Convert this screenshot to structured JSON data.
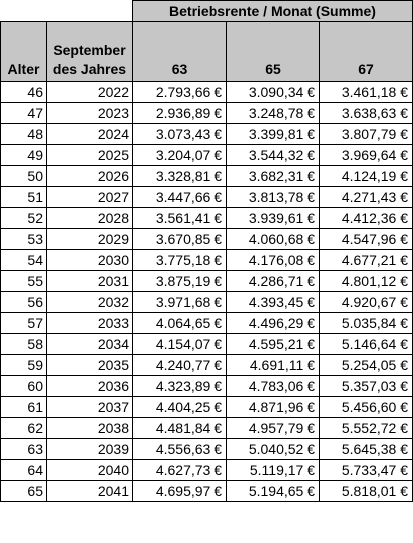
{
  "table": {
    "group_header": "Betriebsrente / Monat (Summe)",
    "headers": {
      "alter": "Alter",
      "september": "September des Jahres",
      "col_63": "63",
      "col_65": "65",
      "col_67": "67"
    },
    "rows": [
      {
        "alter": "46",
        "jahr": "2022",
        "v63": "2.793,66 €",
        "v65": "3.090,34 €",
        "v67": "3.461,18 €"
      },
      {
        "alter": "47",
        "jahr": "2023",
        "v63": "2.936,89 €",
        "v65": "3.248,78 €",
        "v67": "3.638,63 €"
      },
      {
        "alter": "48",
        "jahr": "2024",
        "v63": "3.073,43 €",
        "v65": "3.399,81 €",
        "v67": "3.807,79 €"
      },
      {
        "alter": "49",
        "jahr": "2025",
        "v63": "3.204,07 €",
        "v65": "3.544,32 €",
        "v67": "3.969,64 €"
      },
      {
        "alter": "50",
        "jahr": "2026",
        "v63": "3.328,81 €",
        "v65": "3.682,31 €",
        "v67": "4.124,19 €"
      },
      {
        "alter": "51",
        "jahr": "2027",
        "v63": "3.447,66 €",
        "v65": "3.813,78 €",
        "v67": "4.271,43 €"
      },
      {
        "alter": "52",
        "jahr": "2028",
        "v63": "3.561,41 €",
        "v65": "3.939,61 €",
        "v67": "4.412,36 €"
      },
      {
        "alter": "53",
        "jahr": "2029",
        "v63": "3.670,85 €",
        "v65": "4.060,68 €",
        "v67": "4.547,96 €"
      },
      {
        "alter": "54",
        "jahr": "2030",
        "v63": "3.775,18 €",
        "v65": "4.176,08 €",
        "v67": "4.677,21 €"
      },
      {
        "alter": "55",
        "jahr": "2031",
        "v63": "3.875,19 €",
        "v65": "4.286,71 €",
        "v67": "4.801,12 €"
      },
      {
        "alter": "56",
        "jahr": "2032",
        "v63": "3.971,68 €",
        "v65": "4.393,45 €",
        "v67": "4.920,67 €"
      },
      {
        "alter": "57",
        "jahr": "2033",
        "v63": "4.064,65 €",
        "v65": "4.496,29 €",
        "v67": "5.035,84 €"
      },
      {
        "alter": "58",
        "jahr": "2034",
        "v63": "4.154,07 €",
        "v65": "4.595,21 €",
        "v67": "5.146,64 €"
      },
      {
        "alter": "59",
        "jahr": "2035",
        "v63": "4.240,77 €",
        "v65": "4.691,11 €",
        "v67": "5.254,05 €"
      },
      {
        "alter": "60",
        "jahr": "2036",
        "v63": "4.323,89 €",
        "v65": "4.783,06 €",
        "v67": "5.357,03 €"
      },
      {
        "alter": "61",
        "jahr": "2037",
        "v63": "4.404,25 €",
        "v65": "4.871,96 €",
        "v67": "5.456,60 €"
      },
      {
        "alter": "62",
        "jahr": "2038",
        "v63": "4.481,84 €",
        "v65": "4.957,79 €",
        "v67": "5.552,72 €"
      },
      {
        "alter": "63",
        "jahr": "2039",
        "v63": "4.556,63 €",
        "v65": "5.040,52 €",
        "v67": "5.645,38 €"
      },
      {
        "alter": "64",
        "jahr": "2040",
        "v63": "4.627,73 €",
        "v65": "5.119,17 €",
        "v67": "5.733,47 €"
      },
      {
        "alter": "65",
        "jahr": "2041",
        "v63": "4.695,97 €",
        "v65": "5.194,65 €",
        "v67": "5.818,01 €"
      }
    ]
  },
  "colors": {
    "header_background": "#c6c6c6",
    "border": "#000000",
    "cell_background": "#ffffff"
  }
}
